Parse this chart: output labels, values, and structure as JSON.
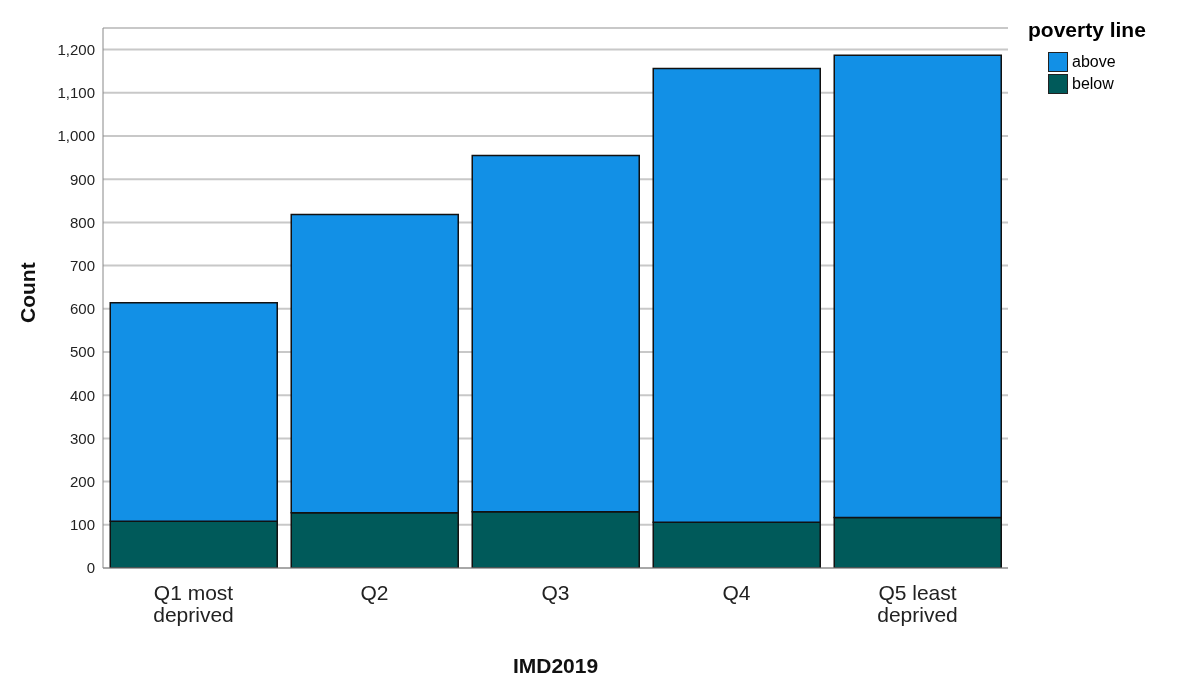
{
  "chart_data": {
    "type": "bar",
    "stacked": true,
    "xlabel": "IMD2019",
    "ylabel": "Count",
    "legend_title": "poverty line",
    "legend": "top right",
    "categories": [
      "Q1 most deprived",
      "Q2",
      "Q3",
      "Q4",
      "Q5 least deprived"
    ],
    "series": [
      {
        "name": "below",
        "color": "#005a5a",
        "values": [
          108,
          128,
          130,
          106,
          117
        ]
      },
      {
        "name": "above",
        "color": "#1290e6",
        "values": [
          506,
          690,
          825,
          1050,
          1070
        ]
      }
    ],
    "ylim": [
      0,
      1250
    ],
    "yticks": [
      0,
      100,
      200,
      300,
      400,
      500,
      600,
      700,
      800,
      900,
      {
        "value": 1000,
        "label": "1,000"
      },
      {
        "value": 1100,
        "label": "1,100"
      },
      {
        "value": 1200,
        "label": "1,200"
      }
    ],
    "grid": "y"
  }
}
